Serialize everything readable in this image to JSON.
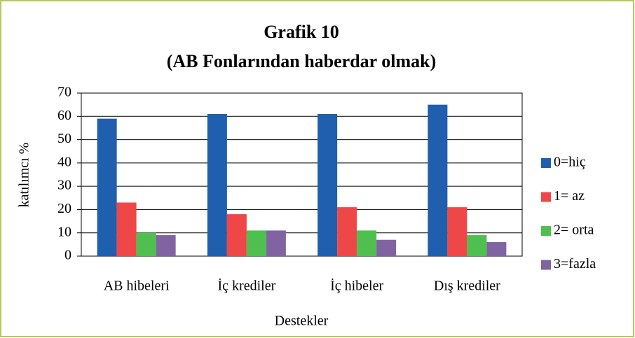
{
  "chart_data": {
    "type": "bar",
    "title": "Grafik 10",
    "subtitle": "(AB Fonlarından haberdar olmak)",
    "x_label": "Destekler",
    "y_label": "katılımcı %",
    "categories": [
      "AB hibeleri",
      "İç krediler",
      "İç hibeler",
      "Dış krediler"
    ],
    "series": [
      {
        "name": "0=hiç",
        "color": "#1f5fad",
        "values": [
          59,
          61,
          61,
          65
        ]
      },
      {
        "name": "1= az",
        "color": "#ef4747",
        "values": [
          23,
          18,
          21,
          21
        ]
      },
      {
        "name": "2= orta",
        "color": "#4fc04f",
        "values": [
          10,
          11,
          11,
          9
        ]
      },
      {
        "name": "3=fazla",
        "color": "#8064a2",
        "values": [
          9,
          11,
          7,
          6
        ]
      }
    ],
    "ylim": [
      0,
      70
    ],
    "yticks": [
      0,
      10,
      20,
      30,
      40,
      50,
      60,
      70
    ],
    "grid": true,
    "legend": "right"
  }
}
